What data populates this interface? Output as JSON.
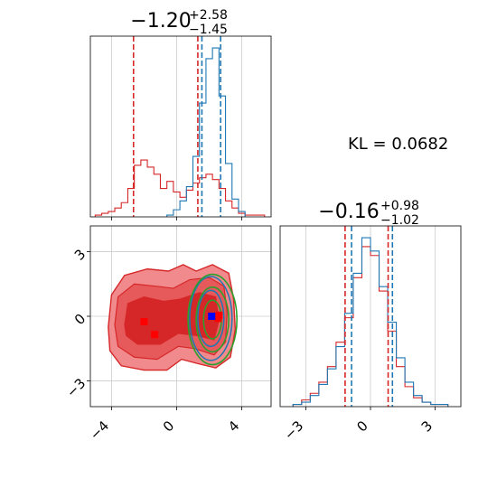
{
  "figure": {
    "kl_text": "KL = 0.0682",
    "colors": {
      "red": "#d62728",
      "red_light": "#f08a8c",
      "red_mid": "#e65a5c",
      "blue": "#1f77b4",
      "green": "#2ca02c",
      "marker_red": "#ff0000",
      "marker_blue": "#0000ff",
      "grid": "#cccccc"
    }
  },
  "chart_data": [
    {
      "type": "histogram",
      "panel": "top-left",
      "title_main": "−1.20",
      "title_sup": "+2.58",
      "title_sub": "−1.45",
      "xlim": [
        -5.3,
        5.8
      ],
      "grid": true,
      "xticks": [
        -4,
        0,
        4
      ],
      "series": [
        {
          "color": "red",
          "bin_centers": [
            -4.8,
            -4.4,
            -4.0,
            -3.6,
            -3.2,
            -2.8,
            -2.4,
            -2.0,
            -1.6,
            -1.2,
            -0.8,
            -0.4,
            0.0,
            0.4,
            0.8,
            1.2,
            1.6,
            2.0,
            2.4,
            2.8,
            3.2,
            3.6,
            4.0,
            4.4,
            4.8,
            5.2
          ],
          "counts": [
            1,
            2,
            3,
            5,
            8,
            16,
            29,
            32,
            28,
            24,
            16,
            20,
            14,
            11,
            15,
            19,
            22,
            24,
            21,
            16,
            9,
            5,
            2,
            1,
            1,
            1
          ]
        },
        {
          "color": "blue",
          "bin_centers": [
            -0.4,
            0.0,
            0.4,
            0.8,
            1.2,
            1.6,
            2.0,
            2.4,
            2.8,
            3.2,
            3.6,
            4.0
          ],
          "counts": [
            1,
            4,
            9,
            17,
            34,
            64,
            89,
            95,
            68,
            30,
            10,
            3
          ]
        }
      ],
      "vlines": [
        {
          "x": -2.65,
          "color": "red"
        },
        {
          "x": 1.3,
          "color": "red"
        },
        {
          "x": 1.55,
          "color": "blue"
        },
        {
          "x": 2.7,
          "color": "blue"
        }
      ]
    },
    {
      "type": "contour",
      "panel": "bottom-left",
      "xlim": [
        -5.3,
        5.8
      ],
      "ylim": [
        -4.2,
        4.2
      ],
      "xticks": [
        -4,
        0,
        4
      ],
      "xtick_labels": [
        "−4",
        "0",
        "4"
      ],
      "yticks": [
        -3,
        0,
        3
      ],
      "ytick_labels": [
        "−3",
        "0",
        "3"
      ],
      "grid": true,
      "red_markers": [
        [
          -2.0,
          -0.25
        ],
        [
          -1.35,
          -0.85
        ],
        [
          2.6,
          0.05
        ],
        [
          2.55,
          -0.1
        ]
      ],
      "blue_markers": [
        [
          2.15,
          0.0
        ]
      ],
      "green_ellipses": [
        {
          "cx": 2.2,
          "cy": -0.15,
          "rx": 1.5,
          "ry": 2.1
        },
        {
          "cx": 2.2,
          "cy": -0.15,
          "rx": 1.0,
          "ry": 1.5
        },
        {
          "cx": 2.2,
          "cy": -0.15,
          "rx": 0.55,
          "ry": 0.9
        }
      ],
      "blue_ellipses": [
        {
          "cx": 2.1,
          "cy": -0.1,
          "rx": 1.3,
          "ry": 1.95
        },
        {
          "cx": 2.1,
          "cy": -0.1,
          "rx": 0.8,
          "ry": 1.3
        }
      ]
    },
    {
      "type": "histogram",
      "panel": "bottom-right",
      "title_main": "−0.16",
      "title_sup": "+0.98",
      "title_sub": "−1.02",
      "xlim": [
        -4.2,
        4.2
      ],
      "grid": true,
      "xticks": [
        -3,
        0,
        3
      ],
      "xtick_labels": [
        "−3",
        "0",
        "3"
      ],
      "series": [
        {
          "color": "red",
          "bin_centers": [
            -3.4,
            -3.0,
            -2.6,
            -2.2,
            -1.8,
            -1.4,
            -1.0,
            -0.6,
            -0.2,
            0.2,
            0.6,
            1.0,
            1.4,
            1.8,
            2.2,
            2.6,
            3.0,
            3.4
          ],
          "counts": [
            1,
            3,
            6,
            11,
            18,
            29,
            40,
            58,
            72,
            68,
            52,
            34,
            18,
            9,
            4,
            2,
            1,
            1
          ]
        },
        {
          "color": "blue",
          "bin_centers": [
            -3.4,
            -3.0,
            -2.6,
            -2.2,
            -1.8,
            -1.4,
            -1.0,
            -0.6,
            -0.2,
            0.2,
            0.6,
            1.0,
            1.4,
            1.8,
            2.2,
            2.6,
            3.0,
            3.4
          ],
          "counts": [
            1,
            2,
            5,
            10,
            17,
            27,
            42,
            60,
            76,
            70,
            54,
            38,
            22,
            11,
            5,
            2,
            1,
            1
          ]
        }
      ],
      "vlines": [
        {
          "x": -1.18,
          "color": "red"
        },
        {
          "x": -0.88,
          "color": "blue"
        },
        {
          "x": 0.82,
          "color": "red"
        },
        {
          "x": 1.02,
          "color": "blue"
        }
      ]
    }
  ]
}
